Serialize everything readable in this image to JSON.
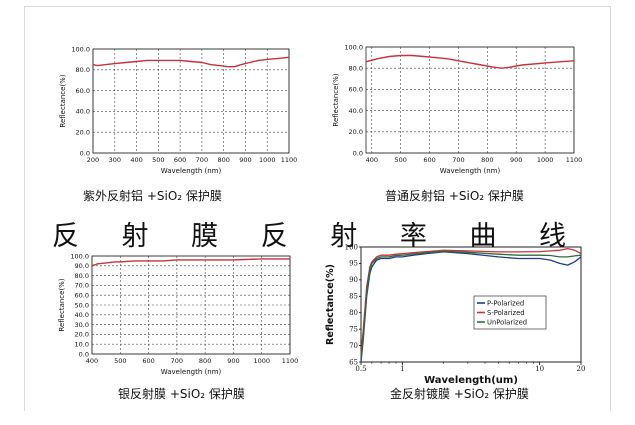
{
  "main_title": "反 射 膜 反 射 率 曲 线",
  "captions": [
    "紫外反射铝 +SiO₂ 保护膜",
    "普通反射铝 +SiO₂ 保护膜",
    "银反射膜 +SiO₂ 保护膜",
    "金反射镀膜 +SiO₂ 保护膜"
  ],
  "colors": {
    "red": "#c8323a",
    "blue": "#1f3c88",
    "green": "#2f6b3a",
    "grid": "#444444"
  },
  "chart_data": [
    {
      "type": "line",
      "ylabel": "Reflectance(%)",
      "xlabel": "Wavelength (nm)",
      "xlim": [
        200,
        1100
      ],
      "ylim": [
        0,
        100
      ],
      "x_ticks": [
        "200",
        "300",
        "400",
        "500",
        "600",
        "700",
        "800",
        "900",
        "1000",
        "1100"
      ],
      "y_ticks": [
        "0.0",
        "20.0",
        "40.0",
        "60.0",
        "80.0",
        "100.0"
      ],
      "series": [
        {
          "x": [
            200,
            220,
            260,
            300,
            350,
            400,
            450,
            500,
            550,
            600,
            650,
            700,
            740,
            780,
            820,
            850,
            880,
            920,
            960,
            1000,
            1050,
            1100
          ],
          "y": [
            85,
            84,
            85,
            86,
            87,
            88,
            89,
            89,
            89,
            89,
            88,
            87,
            85,
            84,
            83,
            83,
            85,
            87,
            89,
            90,
            91,
            92
          ]
        }
      ]
    },
    {
      "type": "line",
      "ylabel": "Reflectance(%)",
      "xlabel": "Wavelength (nm)",
      "xlim": [
        380,
        1100
      ],
      "ylim": [
        0,
        100
      ],
      "x_ticks": [
        "400",
        "500",
        "600",
        "700",
        "800",
        "900",
        "1000",
        "1100"
      ],
      "y_ticks": [
        "0.0",
        "20.0",
        "40.0",
        "60.0",
        "80.0",
        "100.0"
      ],
      "series": [
        {
          "x": [
            380,
            420,
            460,
            500,
            540,
            580,
            620,
            660,
            700,
            740,
            780,
            820,
            850,
            880,
            920,
            960,
            1000,
            1050,
            1100
          ],
          "y": [
            86,
            89,
            91,
            92,
            92,
            91,
            90,
            89,
            87,
            85,
            83,
            81,
            80,
            81,
            83,
            84,
            85,
            86,
            87
          ]
        }
      ]
    },
    {
      "type": "line",
      "ylabel": "Reflectance(%)",
      "xlabel": "Wavelength (nm)",
      "xlim": [
        400,
        1100
      ],
      "ylim": [
        0,
        100
      ],
      "x_ticks": [
        "400",
        "500",
        "600",
        "700",
        "800",
        "900",
        "1000",
        "1100"
      ],
      "y_ticks": [
        "0.0",
        "10.0",
        "20.0",
        "30.0",
        "40.0",
        "50.0",
        "60.0",
        "70.0",
        "80.0",
        "90.0",
        "100.0"
      ],
      "series": [
        {
          "x": [
            400,
            420,
            450,
            480,
            500,
            550,
            600,
            650,
            700,
            800,
            900,
            1000,
            1100
          ],
          "y": [
            90,
            92,
            93,
            94,
            94,
            95,
            95,
            95,
            96,
            96,
            96,
            97,
            97
          ]
        }
      ]
    },
    {
      "type": "line",
      "ylabel": "Reflectance(%)",
      "xlabel": "Wavelength(um)",
      "xscale": "log",
      "xlim": [
        0.5,
        20
      ],
      "ylim": [
        65,
        100
      ],
      "x_ticks": [
        "0.5",
        "1",
        "10",
        "20"
      ],
      "y_ticks": [
        "65",
        "70",
        "75",
        "80",
        "85",
        "90",
        "95",
        "100"
      ],
      "legend": "center-right",
      "series": [
        {
          "name": "P-Polarized",
          "color": "blue",
          "x": [
            0.5,
            0.52,
            0.55,
            0.58,
            0.6,
            0.65,
            0.7,
            0.8,
            0.9,
            1,
            1.2,
            1.5,
            2,
            3,
            5,
            7,
            10,
            12,
            14,
            16,
            18,
            20
          ],
          "y": [
            65,
            72,
            85,
            92,
            94,
            96,
            96.5,
            96.5,
            97,
            97,
            97.5,
            98,
            98.5,
            98,
            97,
            96.5,
            96.5,
            96,
            95,
            94.5,
            95.5,
            97
          ]
        },
        {
          "name": "S-Polarized",
          "color": "red",
          "x": [
            0.5,
            0.52,
            0.55,
            0.58,
            0.6,
            0.65,
            0.7,
            0.8,
            0.9,
            1,
            1.2,
            1.5,
            2,
            3,
            5,
            7,
            10,
            12,
            14,
            16,
            18,
            20
          ],
          "y": [
            67,
            75,
            88,
            94,
            95.5,
            97,
            97.5,
            97.5,
            97.8,
            98,
            98.3,
            98.6,
            99,
            98.8,
            98.5,
            98.5,
            98.6,
            98.8,
            99,
            99.5,
            99,
            98
          ]
        },
        {
          "name": "UnPolarized",
          "color": "green",
          "x": [
            0.5,
            0.52,
            0.55,
            0.58,
            0.6,
            0.65,
            0.7,
            0.8,
            0.9,
            1,
            1.2,
            1.5,
            2,
            3,
            5,
            7,
            10,
            12,
            14,
            16,
            18,
            20
          ],
          "y": [
            66,
            73,
            86,
            93,
            95,
            96.5,
            97,
            97,
            97.4,
            97.5,
            97.9,
            98.3,
            98.7,
            98.4,
            97.8,
            97.5,
            97.5,
            97.4,
            97,
            97,
            97.3,
            97.5
          ]
        }
      ]
    }
  ]
}
